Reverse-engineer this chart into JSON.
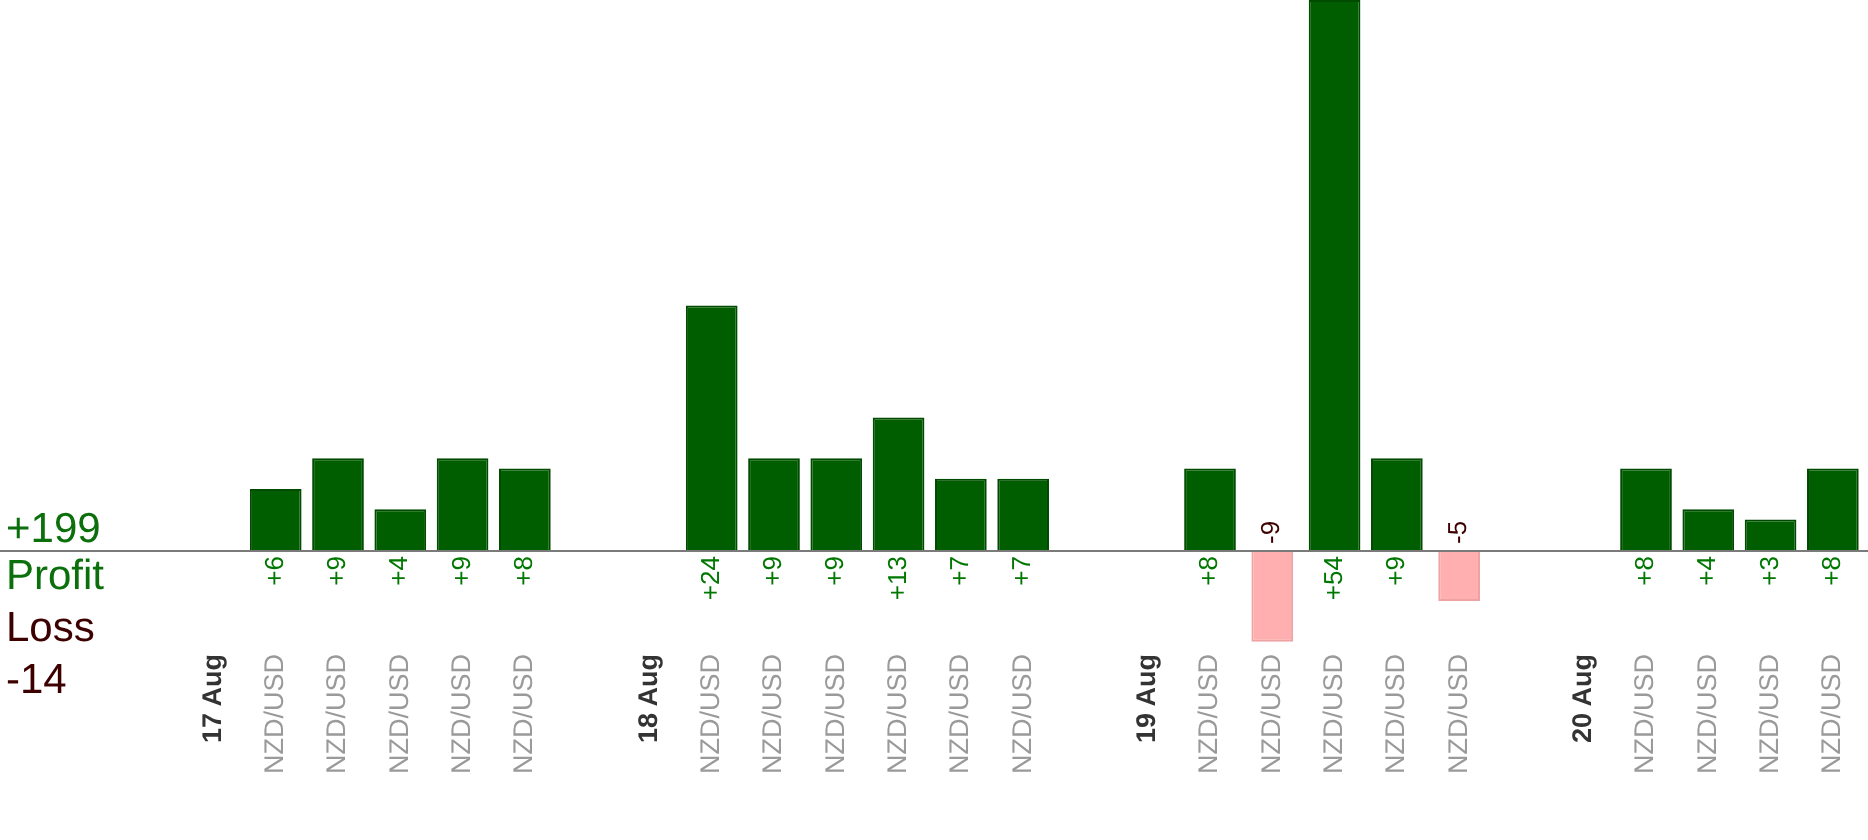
{
  "chart_data": {
    "type": "bar",
    "ylabel": "Profit",
    "annotations": [
      "+199",
      "Loss",
      "-14"
    ],
    "categories": [
      null,
      "17 Aug",
      "NZD/USD",
      "NZD/USD",
      "NZD/USD",
      "NZD/USD",
      "NZD/USD",
      null,
      "18 Aug",
      "NZD/USD",
      "NZD/USD",
      "NZD/USD",
      "NZD/USD",
      "NZD/USD",
      "NZD/USD",
      null,
      "19 Aug",
      "NZD/USD",
      "NZD/USD",
      "NZD/USD",
      "NZD/USD",
      "NZD/USD",
      null,
      "20 Aug",
      "NZD/USD",
      "NZD/USD",
      "NZD/USD",
      "NZD/USD"
    ],
    "series": [
      {
        "color": "#005e00",
        "values": [
          null,
          null,
          6,
          9,
          4,
          9,
          8,
          null,
          null,
          24,
          9,
          9,
          13,
          7,
          7,
          null,
          null,
          8,
          null,
          54,
          9,
          null,
          null,
          null,
          8,
          4,
          3,
          8
        ],
        "value_labels": [
          null,
          null,
          "+6",
          "+9",
          "+4",
          "+9",
          "+8",
          null,
          null,
          "+24",
          "+9",
          "+9",
          "+13",
          "+7",
          "+7",
          null,
          null,
          "+8",
          null,
          "+54",
          "+9",
          null,
          null,
          null,
          "+8",
          "+4",
          "+3",
          "+8"
        ]
      },
      {
        "color": "#ffafaf",
        "values": [
          null,
          null,
          null,
          null,
          null,
          null,
          null,
          null,
          null,
          null,
          null,
          null,
          null,
          null,
          null,
          null,
          null,
          null,
          -9,
          null,
          null,
          -5,
          null,
          null,
          null,
          null,
          null,
          null
        ],
        "value_labels": [
          null,
          null,
          null,
          null,
          null,
          null,
          null,
          null,
          null,
          null,
          null,
          null,
          null,
          null,
          null,
          null,
          null,
          null,
          "-9",
          null,
          null,
          "-5",
          null,
          null,
          null,
          null,
          null,
          null
        ]
      }
    ],
    "tick_labels": "x"
  }
}
